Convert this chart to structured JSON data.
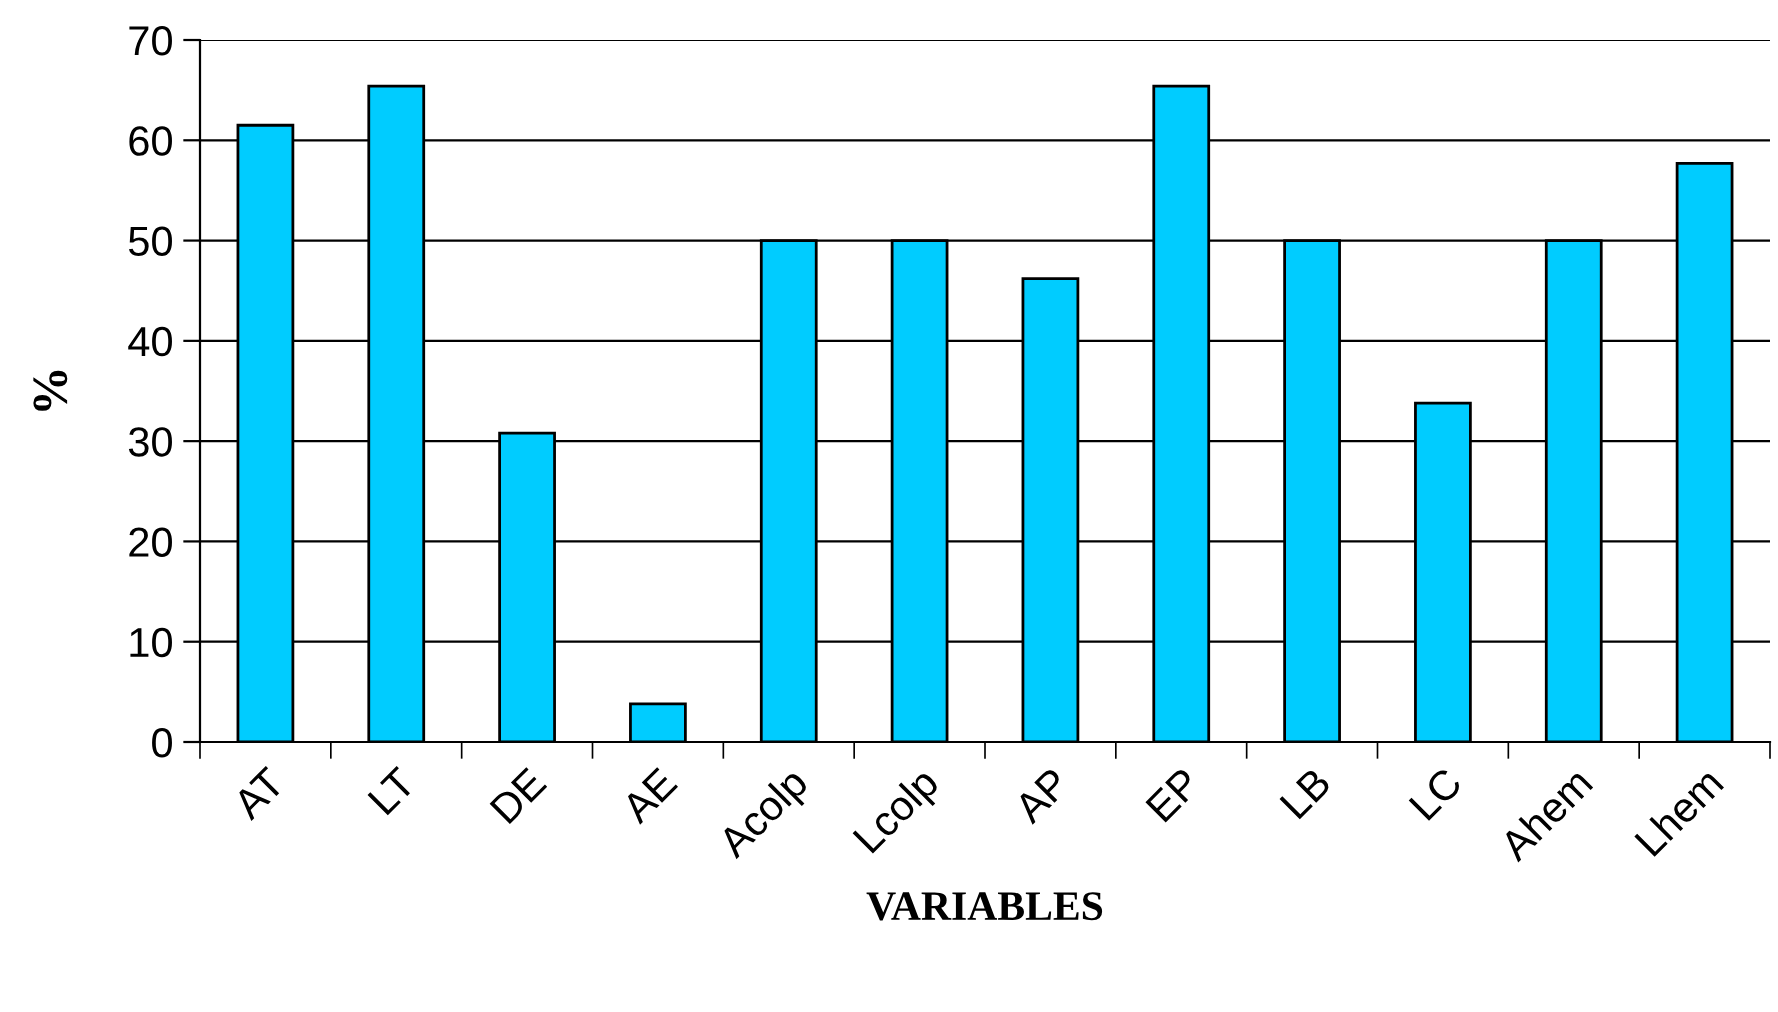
{
  "chart_data": {
    "type": "bar",
    "xlabel": "VARIABLES",
    "ylabel": "%",
    "categories": [
      "AT",
      "LT",
      "DE",
      "AE",
      "Acolp",
      "Lcolp",
      "AP",
      "EP",
      "LB",
      "LC",
      "Ahem",
      "Lhem"
    ],
    "values": [
      61.5,
      65.4,
      30.8,
      3.8,
      50,
      50,
      46.2,
      65.4,
      50,
      33.8,
      50,
      57.7
    ],
    "color": "#00ccff",
    "ylim": [
      0,
      70
    ],
    "yticks": [
      0,
      10,
      20,
      30,
      40,
      50,
      60,
      70
    ],
    "grid": "y"
  }
}
